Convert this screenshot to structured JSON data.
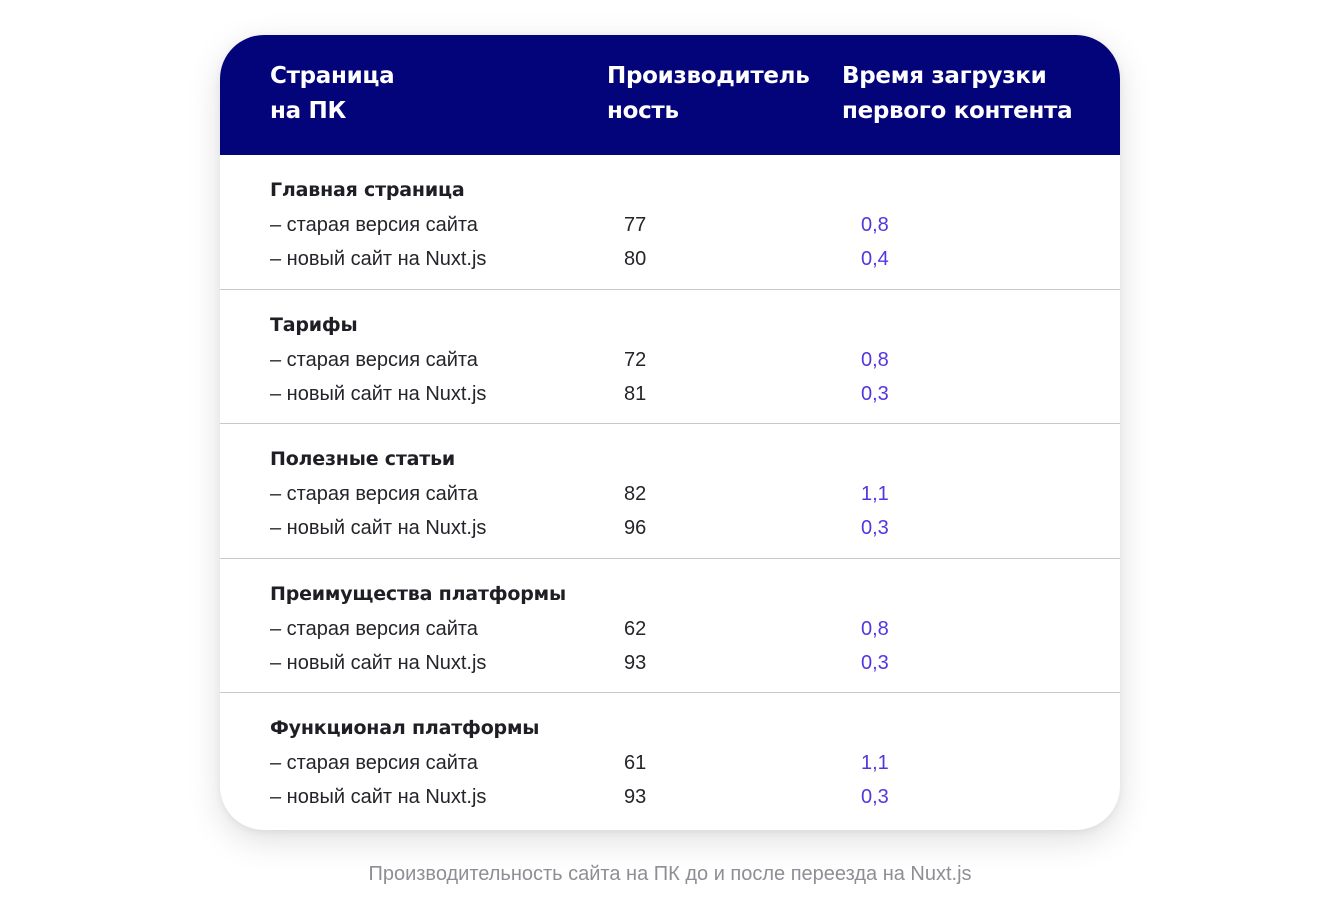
{
  "table": {
    "headers": [
      "Страница\nна ПК",
      "Производитель\nность",
      "Время загрузки\nпервого контента"
    ],
    "groups": [
      {
        "title": "Главная страница",
        "rows": [
          {
            "label": "– старая версия сайта",
            "performance": "77",
            "fcp": "0,8"
          },
          {
            "label": "– новый сайт на Nuxt.js",
            "performance": "80",
            "fcp": "0,4"
          }
        ]
      },
      {
        "title": "Тарифы",
        "rows": [
          {
            "label": "– старая версия сайта",
            "performance": "72",
            "fcp": "0,8"
          },
          {
            "label": "– новый сайт на Nuxt.js",
            "performance": "81",
            "fcp": "0,3"
          }
        ]
      },
      {
        "title": "Полезные статьи",
        "rows": [
          {
            "label": "– старая версия сайта",
            "performance": "82",
            "fcp": "1,1"
          },
          {
            "label": "– новый сайт на Nuxt.js",
            "performance": "96",
            "fcp": "0,3"
          }
        ]
      },
      {
        "title": "Преимущества платформы",
        "rows": [
          {
            "label": "– старая версия сайта",
            "performance": "62",
            "fcp": "0,8"
          },
          {
            "label": "– новый сайт на Nuxt.js",
            "performance": "93",
            "fcp": "0,3"
          }
        ]
      },
      {
        "title": "Функционал платформы",
        "rows": [
          {
            "label": "– старая версия сайта",
            "performance": "61",
            "fcp": "1,1"
          },
          {
            "label": "– новый сайт на Nuxt.js",
            "performance": "93",
            "fcp": "0,3"
          }
        ]
      }
    ]
  },
  "caption": "Производительность сайта на ПК до и после переезда на Nuxt.js",
  "colors": {
    "header_bg": "#03037a",
    "header_text": "#ffffff",
    "accent_values": "#5535e0",
    "caption_text": "#8e8e94"
  }
}
